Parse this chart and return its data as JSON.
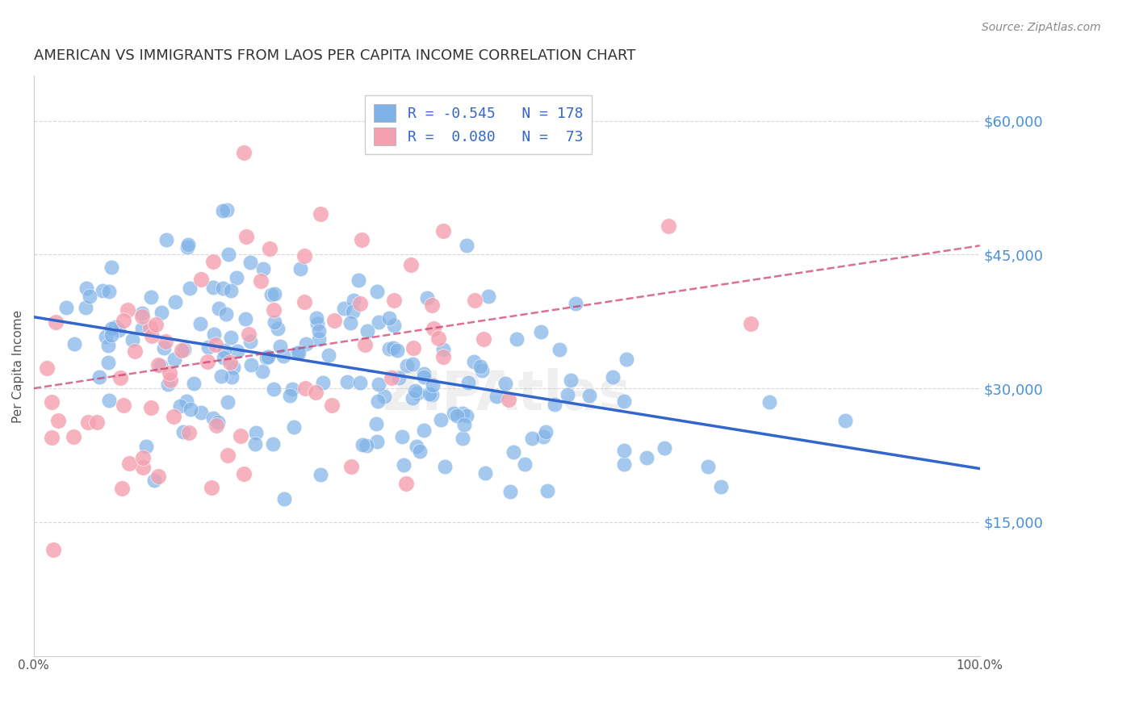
{
  "title": "AMERICAN VS IMMIGRANTS FROM LAOS PER CAPITA INCOME CORRELATION CHART",
  "source": "Source: ZipAtlas.com",
  "xlabel": "",
  "ylabel": "Per Capita Income",
  "watermark": "ZIPAtlas",
  "legend_entries": [
    {
      "label": "R = -0.545   N = 178",
      "color": "#aac4e8"
    },
    {
      "label": "R =  0.080   N =  73",
      "color": "#f4a8b8"
    }
  ],
  "r_blue": -0.545,
  "n_blue": 178,
  "r_pink": 0.08,
  "n_pink": 73,
  "x_min": 0.0,
  "x_max": 1.0,
  "y_min": 0,
  "y_max": 65000,
  "yticks": [
    15000,
    30000,
    45000,
    60000
  ],
  "ytick_labels": [
    "$15,000",
    "$30,000",
    "$45,000",
    "$60,000"
  ],
  "xtick_labels": [
    "0.0%",
    "100.0%"
  ],
  "blue_color": "#7fb3e8",
  "blue_line_color": "#3366cc",
  "pink_color": "#f4a0b0",
  "pink_line_color": "#cc3366",
  "background_color": "#ffffff",
  "grid_color": "#cccccc",
  "title_color": "#333333",
  "axis_label_color": "#555555",
  "right_tick_color": "#4a90d9",
  "title_fontsize": 13,
  "source_fontsize": 10,
  "seed_blue": 42,
  "seed_pink": 7,
  "blue_intercept": 38000,
  "blue_slope": -17000,
  "pink_intercept": 30000,
  "pink_slope": 16000
}
